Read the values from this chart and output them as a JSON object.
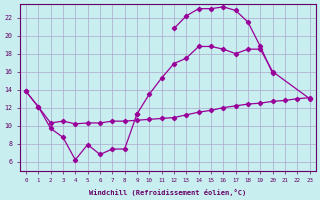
{
  "bg_color": "#c8eef0",
  "line_color": "#990099",
  "grid_color": "#aaaacc",
  "axis_color": "#660066",
  "xlabel": "Windchill (Refroidissement éolien,°C)",
  "ylim": [
    5,
    23.5
  ],
  "xlim": [
    -0.5,
    23.5
  ],
  "yticks": [
    6,
    8,
    10,
    12,
    14,
    16,
    18,
    20,
    22
  ],
  "xticks": [
    0,
    1,
    2,
    3,
    4,
    5,
    6,
    7,
    8,
    9,
    10,
    11,
    12,
    13,
    14,
    15,
    16,
    17,
    18,
    19,
    20,
    21,
    22,
    23
  ],
  "straight_x": [
    0,
    1,
    2,
    3,
    4,
    5,
    6,
    7,
    8,
    9,
    10,
    11,
    12,
    13,
    14,
    15,
    16,
    17,
    18,
    19,
    20,
    21,
    22,
    23
  ],
  "straight_y": [
    13.8,
    12.1,
    10.3,
    10.5,
    10.2,
    10.3,
    10.3,
    10.5,
    10.5,
    10.6,
    10.7,
    10.8,
    10.9,
    11.2,
    11.5,
    11.7,
    12.0,
    12.2,
    12.4,
    12.5,
    12.7,
    12.8,
    13.0,
    13.1
  ],
  "zigzag_x": [
    0,
    1,
    2,
    3,
    4,
    5,
    6,
    7,
    8,
    9
  ],
  "zigzag_y": [
    13.8,
    12.1,
    9.7,
    8.7,
    6.2,
    7.9,
    6.8,
    7.4,
    7.4,
    11.3
  ],
  "middle_x": [
    9,
    10,
    11,
    12,
    13,
    14,
    15,
    16,
    17,
    18,
    19,
    20,
    23
  ],
  "middle_y": [
    11.3,
    13.5,
    15.3,
    16.9,
    17.5,
    18.8,
    18.8,
    18.5,
    18.0,
    18.5,
    18.5,
    16.0,
    13.0
  ],
  "top_x": [
    12,
    13,
    14,
    15,
    16,
    17,
    18,
    19,
    20
  ],
  "top_y": [
    20.8,
    22.2,
    23.0,
    23.0,
    23.2,
    22.8,
    21.5,
    18.8,
    15.8
  ]
}
